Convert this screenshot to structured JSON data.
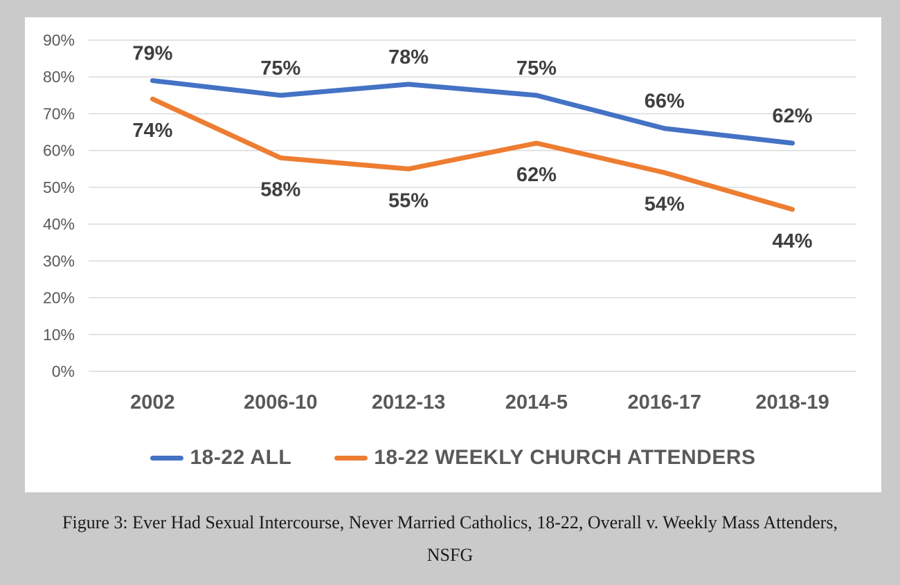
{
  "page": {
    "background_color": "#cacaca",
    "card_background_color": "#ffffff"
  },
  "caption": {
    "line1": "Figure 3: Ever Had Sexual Intercourse, Never Married Catholics, 18-22, Overall v. Weekly Mass Attenders,",
    "line2": "NSFG"
  },
  "chart_data": {
    "type": "line",
    "title": "",
    "xlabel": "",
    "ylabel": "",
    "categories": [
      "2002",
      "2006-10",
      "2012-13",
      "2014-5",
      "2016-17",
      "2018-19"
    ],
    "series": [
      {
        "name": "18-22 ALL",
        "color": "#4472C4",
        "values": [
          79,
          75,
          78,
          75,
          66,
          62
        ],
        "data_labels": [
          "79%",
          "75%",
          "78%",
          "75%",
          "66%",
          "62%"
        ],
        "label_position": "above"
      },
      {
        "name": "18-22 WEEKLY CHURCH ATTENDERS",
        "color": "#ED7D31",
        "values": [
          74,
          58,
          55,
          62,
          54,
          44
        ],
        "data_labels": [
          "74%",
          "58%",
          "55%",
          "62%",
          "54%",
          "44%"
        ],
        "label_position": "below"
      }
    ],
    "y_axis": {
      "min": 0,
      "max": 90,
      "step": 10,
      "tick_labels": [
        "90%",
        "80%",
        "70%",
        "60%",
        "50%",
        "40%",
        "30%",
        "20%",
        "10%",
        "0%"
      ]
    },
    "grid": true,
    "legend_position": "bottom",
    "styles": {
      "gridline_color": "#d9d9d9",
      "axis_text_color": "#595959",
      "data_label_color": "#3f3f3f",
      "line_width": 7
    }
  }
}
